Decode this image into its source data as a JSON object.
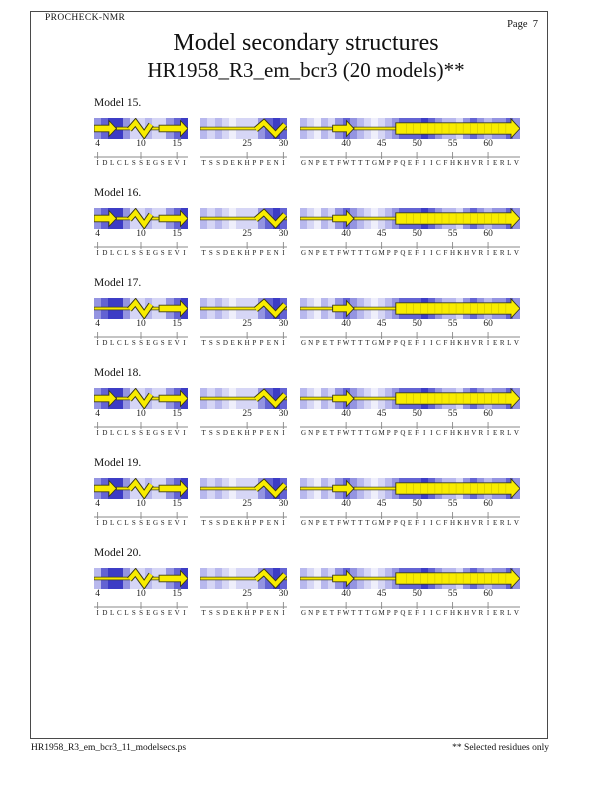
{
  "page": {
    "procheck": "PROCHECK-NMR",
    "page_label": "Page  7",
    "title": "Model secondary structures",
    "subtitle": "HR1958_R3_em_bcr3 (20 models)**",
    "footer_left": "HR1958_R3_em_bcr3_11_modelsecs.ps",
    "footer_right": "** Selected residues only"
  },
  "colors": {
    "strand_yellow": "#f8ec00",
    "glyph_outline": "#3a3a1a",
    "arrow_inner_line": "#d6ca00",
    "axis_line": "#888888",
    "shade_palette": [
      "#efeffb",
      "#d6d6f5",
      "#b8b8ed",
      "#9494e1",
      "#6363d3",
      "#3c3cc5"
    ]
  },
  "chart_data": {
    "type": "heatmap",
    "description": "PROCHECK-NMR per-model secondary structure strips: per-residue blue shading (heatmap) with yellow glyph overlays (arrow = beta strand, zigzag = helix, line = coil). Three residue segments per model.",
    "segments": [
      {
        "first_residue": 4,
        "last_residue": 16,
        "ticks": [
          4,
          10,
          15
        ],
        "sequence": "IDLCLSSEGSEVI"
      },
      {
        "first_residue": 19,
        "last_residue": 30,
        "ticks": [
          25,
          30
        ],
        "sequence": "TSSDEKHPPENI"
      },
      {
        "first_residue": 34,
        "last_residue": 64,
        "ticks": [
          40,
          45,
          50,
          55,
          60
        ],
        "sequence": "GNPETFWTTTGMPPQEFIICFHKHVRIERLV"
      }
    ],
    "models": [
      {
        "label": "Model 15.",
        "shading": [
          [
            3,
            4,
            5,
            5,
            3,
            1,
            1,
            2,
            1,
            1,
            3,
            4,
            5
          ],
          [
            2,
            1,
            2,
            1,
            0,
            1,
            1,
            1,
            3,
            4,
            5,
            4
          ],
          [
            2,
            1,
            0,
            2,
            1,
            3,
            4,
            3,
            2,
            1,
            0,
            1,
            2,
            3,
            4,
            4,
            4,
            5,
            4,
            3,
            2,
            2,
            1,
            3,
            4,
            3,
            2,
            3,
            3,
            4,
            3
          ]
        ],
        "structures": [
          [
            {
              "type": "strand",
              "from": 4,
              "to": 7.1
            },
            {
              "type": "coil",
              "from": 7.1,
              "to": 8.9
            },
            {
              "type": "helix",
              "from": 8.9,
              "to": 11.9
            },
            {
              "type": "coil",
              "from": 11.9,
              "to": 13
            },
            {
              "type": "strand",
              "from": 13,
              "to": 17
            }
          ],
          [
            {
              "type": "coil",
              "from": 19,
              "to": 26.7
            },
            {
              "type": "helix",
              "from": 26.7,
              "to": 30.7
            },
            {
              "type": "coil",
              "from": 30.7,
              "to": 31
            }
          ],
          [
            {
              "type": "coil",
              "from": 34,
              "to": 38.6
            },
            {
              "type": "strand",
              "from": 38.6,
              "to": 41.6
            },
            {
              "type": "coil",
              "from": 41.6,
              "to": 47.5
            },
            {
              "type": "strand",
              "from": 47.5,
              "to": 65,
              "wide": true
            }
          ]
        ]
      },
      {
        "label": "Model 16.",
        "shading": [
          [
            3,
            4,
            5,
            5,
            3,
            1,
            1,
            2,
            1,
            1,
            3,
            4,
            5
          ],
          [
            2,
            1,
            2,
            1,
            0,
            1,
            1,
            1,
            3,
            4,
            5,
            4
          ],
          [
            2,
            1,
            0,
            2,
            1,
            3,
            4,
            3,
            2,
            1,
            0,
            1,
            2,
            3,
            4,
            4,
            4,
            5,
            4,
            3,
            2,
            2,
            1,
            3,
            4,
            3,
            2,
            3,
            3,
            4,
            3
          ]
        ],
        "structures": [
          [
            {
              "type": "strand",
              "from": 4,
              "to": 7.1
            },
            {
              "type": "coil",
              "from": 7.1,
              "to": 8.9
            },
            {
              "type": "helix",
              "from": 8.9,
              "to": 11.9
            },
            {
              "type": "coil",
              "from": 11.9,
              "to": 13
            },
            {
              "type": "strand",
              "from": 13,
              "to": 17
            }
          ],
          [
            {
              "type": "coil",
              "from": 19,
              "to": 26.7
            },
            {
              "type": "helix",
              "from": 26.7,
              "to": 30.7
            },
            {
              "type": "coil",
              "from": 30.7,
              "to": 31
            }
          ],
          [
            {
              "type": "coil",
              "from": 34,
              "to": 38.6
            },
            {
              "type": "strand",
              "from": 38.6,
              "to": 41.6
            },
            {
              "type": "coil",
              "from": 41.6,
              "to": 47.5
            },
            {
              "type": "strand",
              "from": 47.5,
              "to": 65,
              "wide": true
            }
          ]
        ]
      },
      {
        "label": "Model 17.",
        "shading": [
          [
            3,
            4,
            5,
            5,
            3,
            1,
            1,
            2,
            1,
            1,
            3,
            4,
            5
          ],
          [
            2,
            1,
            2,
            1,
            0,
            1,
            1,
            1,
            3,
            4,
            5,
            4
          ],
          [
            2,
            1,
            0,
            2,
            1,
            3,
            4,
            3,
            2,
            1,
            0,
            1,
            2,
            3,
            4,
            4,
            4,
            5,
            4,
            3,
            2,
            2,
            1,
            3,
            4,
            3,
            2,
            3,
            3,
            4,
            3
          ]
        ],
        "structures": [
          [
            {
              "type": "coil",
              "from": 4,
              "to": 8.9
            },
            {
              "type": "helix",
              "from": 8.9,
              "to": 11.9
            },
            {
              "type": "coil",
              "from": 11.9,
              "to": 13
            },
            {
              "type": "strand",
              "from": 13,
              "to": 17
            }
          ],
          [
            {
              "type": "coil",
              "from": 19,
              "to": 26.7
            },
            {
              "type": "helix",
              "from": 26.7,
              "to": 30.7
            },
            {
              "type": "coil",
              "from": 30.7,
              "to": 31
            }
          ],
          [
            {
              "type": "coil",
              "from": 34,
              "to": 38.6
            },
            {
              "type": "strand",
              "from": 38.6,
              "to": 41.6
            },
            {
              "type": "coil",
              "from": 41.6,
              "to": 47.5
            },
            {
              "type": "strand",
              "from": 47.5,
              "to": 65,
              "wide": true
            }
          ]
        ]
      },
      {
        "label": "Model 18.",
        "shading": [
          [
            3,
            4,
            5,
            5,
            3,
            1,
            1,
            2,
            1,
            1,
            3,
            4,
            5
          ],
          [
            2,
            1,
            2,
            1,
            0,
            1,
            1,
            1,
            3,
            4,
            5,
            4
          ],
          [
            2,
            1,
            0,
            2,
            1,
            3,
            4,
            3,
            2,
            1,
            0,
            1,
            2,
            3,
            4,
            4,
            4,
            5,
            4,
            3,
            2,
            2,
            1,
            3,
            4,
            3,
            2,
            3,
            3,
            4,
            3
          ]
        ],
        "structures": [
          [
            {
              "type": "strand",
              "from": 4,
              "to": 7.1
            },
            {
              "type": "coil",
              "from": 7.1,
              "to": 8.9
            },
            {
              "type": "helix",
              "from": 8.9,
              "to": 11.9
            },
            {
              "type": "coil",
              "from": 11.9,
              "to": 13
            },
            {
              "type": "strand",
              "from": 13,
              "to": 17
            }
          ],
          [
            {
              "type": "coil",
              "from": 19,
              "to": 26.7
            },
            {
              "type": "helix",
              "from": 26.7,
              "to": 30.7
            },
            {
              "type": "coil",
              "from": 30.7,
              "to": 31
            }
          ],
          [
            {
              "type": "coil",
              "from": 34,
              "to": 38.6
            },
            {
              "type": "strand",
              "from": 38.6,
              "to": 41.6
            },
            {
              "type": "coil",
              "from": 41.6,
              "to": 47.5
            },
            {
              "type": "strand",
              "from": 47.5,
              "to": 65,
              "wide": true
            }
          ]
        ]
      },
      {
        "label": "Model 19.",
        "shading": [
          [
            3,
            4,
            5,
            5,
            3,
            1,
            1,
            2,
            1,
            1,
            3,
            4,
            5
          ],
          [
            2,
            1,
            2,
            1,
            0,
            1,
            1,
            1,
            3,
            4,
            5,
            4
          ],
          [
            2,
            1,
            0,
            2,
            1,
            3,
            4,
            3,
            2,
            1,
            0,
            1,
            2,
            3,
            4,
            4,
            4,
            5,
            4,
            3,
            2,
            2,
            1,
            3,
            4,
            3,
            2,
            3,
            3,
            4,
            3
          ]
        ],
        "structures": [
          [
            {
              "type": "strand",
              "from": 4,
              "to": 7.1
            },
            {
              "type": "coil",
              "from": 7.1,
              "to": 8.9
            },
            {
              "type": "helix",
              "from": 8.9,
              "to": 11.9
            },
            {
              "type": "coil",
              "from": 11.9,
              "to": 13
            },
            {
              "type": "strand",
              "from": 13,
              "to": 17
            }
          ],
          [
            {
              "type": "coil",
              "from": 19,
              "to": 26.7
            },
            {
              "type": "helix",
              "from": 26.7,
              "to": 30.7
            },
            {
              "type": "coil",
              "from": 30.7,
              "to": 31
            }
          ],
          [
            {
              "type": "coil",
              "from": 34,
              "to": 38.6
            },
            {
              "type": "strand",
              "from": 38.6,
              "to": 41.6
            },
            {
              "type": "coil",
              "from": 41.6,
              "to": 47.5
            },
            {
              "type": "strand",
              "from": 47.5,
              "to": 65,
              "wide": true
            }
          ]
        ]
      },
      {
        "label": "Model 20.",
        "shading": [
          [
            2,
            4,
            5,
            5,
            3,
            1,
            1,
            2,
            1,
            1,
            3,
            4,
            5
          ],
          [
            2,
            1,
            2,
            1,
            0,
            1,
            1,
            1,
            3,
            4,
            5,
            4
          ],
          [
            2,
            1,
            0,
            2,
            1,
            3,
            4,
            3,
            2,
            1,
            0,
            1,
            2,
            3,
            4,
            4,
            4,
            5,
            4,
            3,
            2,
            2,
            1,
            3,
            4,
            3,
            2,
            3,
            3,
            4,
            3
          ]
        ],
        "structures": [
          [
            {
              "type": "coil",
              "from": 4,
              "to": 8.9
            },
            {
              "type": "helix",
              "from": 8.9,
              "to": 11.9
            },
            {
              "type": "coil",
              "from": 11.9,
              "to": 13
            },
            {
              "type": "strand",
              "from": 13,
              "to": 17
            }
          ],
          [
            {
              "type": "coil",
              "from": 19,
              "to": 26.7
            },
            {
              "type": "helix",
              "from": 26.7,
              "to": 30.7
            },
            {
              "type": "coil",
              "from": 30.7,
              "to": 31
            }
          ],
          [
            {
              "type": "coil",
              "from": 34,
              "to": 38.6
            },
            {
              "type": "strand",
              "from": 38.6,
              "to": 41.6
            },
            {
              "type": "coil",
              "from": 41.6,
              "to": 47.5
            },
            {
              "type": "strand",
              "from": 47.5,
              "to": 65,
              "wide": true
            }
          ]
        ]
      }
    ]
  }
}
